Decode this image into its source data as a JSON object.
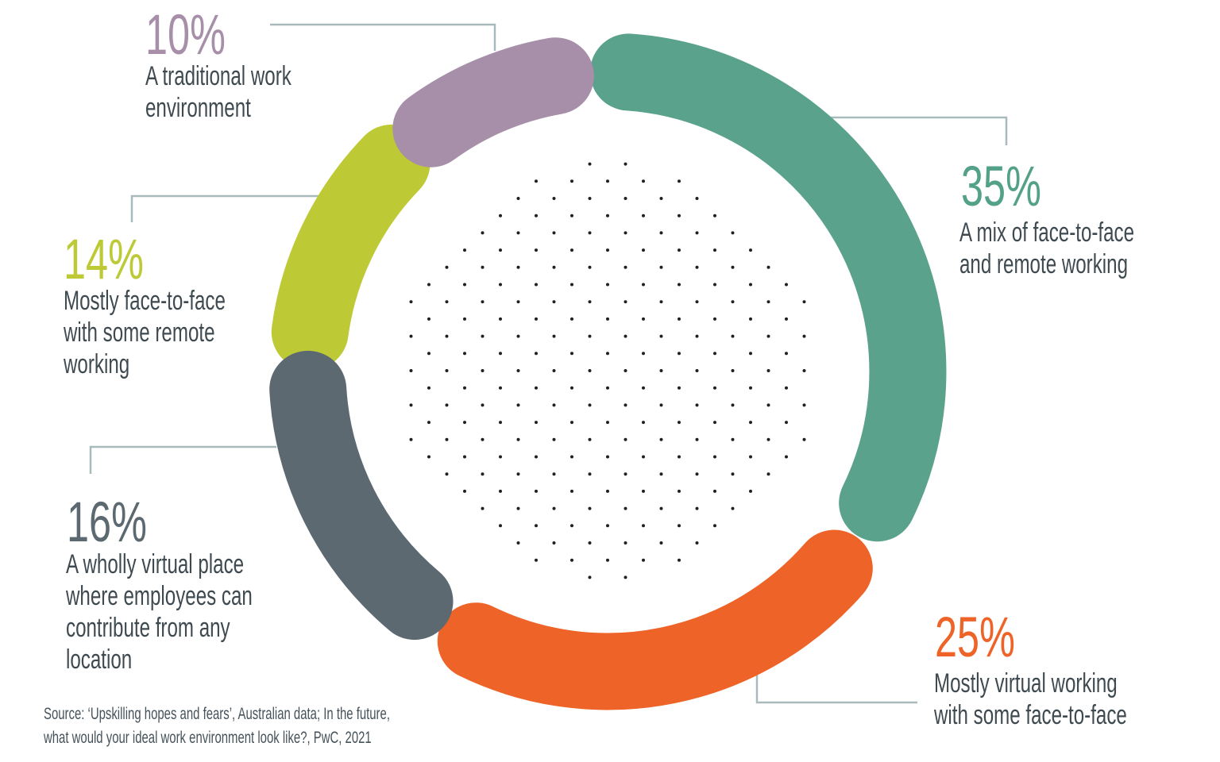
{
  "chart_data": {
    "type": "pie",
    "subtype": "donut-rounded-segments",
    "unit": "%",
    "start_angle_deg": -3,
    "direction": "clockwise",
    "segments": [
      {
        "label": "A mix of face-to-face and remote working",
        "value": 35,
        "color": "#5AA28B"
      },
      {
        "label": "Mostly virtual working with some face-to-face",
        "value": 25,
        "color": "#EE6327"
      },
      {
        "label": "A wholly virtual place where employees can contribute from any location",
        "value": 16,
        "color": "#5C6971"
      },
      {
        "label": "Mostly face-to-face with some remote working",
        "value": 14,
        "color": "#BDC935"
      },
      {
        "label": "A traditional work environment",
        "value": 10,
        "color": "#A78FA9"
      }
    ],
    "center_dots_color": "#202020",
    "leader_line_color": "#A9BABD",
    "source": "Source: ‘Upskilling hopes and fears’, Australian data; In the future, what would your ideal work environment look like?, PwC, 2021"
  },
  "callouts": [
    {
      "pct": "35%",
      "color": "#53A188",
      "lines": [
        "A mix of face-to-face",
        "and remote working"
      ]
    },
    {
      "pct": "25%",
      "color": "#EE6327",
      "lines": [
        "Mostly virtual working",
        "with some face-to-face"
      ]
    },
    {
      "pct": "16%",
      "color": "#5C6971",
      "lines": [
        "A wholly virtual place",
        "where employees can",
        "contribute from any",
        "location"
      ]
    },
    {
      "pct": "14%",
      "color": "#BDC935",
      "lines": [
        "Mostly face-to-face",
        "with some remote",
        "working"
      ]
    },
    {
      "pct": "10%",
      "color": "#A78FA9",
      "lines": [
        "A traditional work",
        "environment"
      ]
    }
  ],
  "source": {
    "line1": "Source: ‘Upskilling hopes and fears’, Australian data; In the future,",
    "line2": "what would your ideal work environment look like?, PwC, 2021"
  }
}
